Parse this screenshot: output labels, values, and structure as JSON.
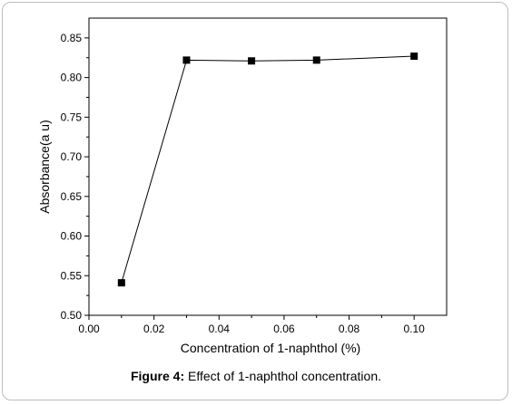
{
  "chart_data": {
    "type": "line",
    "xlabel": "Concentration of 1-naphthol (%)",
    "ylabel": "Absorbance(a u)",
    "xlim": [
      0.0,
      0.11
    ],
    "ylim": [
      0.5,
      0.875
    ],
    "xticks": [
      0.0,
      0.02,
      0.04,
      0.06,
      0.08,
      0.1
    ],
    "xtick_labels": [
      "0.00",
      "0.02",
      "0.04",
      "0.06",
      "0.08",
      "0.10"
    ],
    "yticks": [
      0.5,
      0.55,
      0.6,
      0.65,
      0.7,
      0.75,
      0.8,
      0.85
    ],
    "ytick_labels": [
      "0.50",
      "0.55",
      "0.60",
      "0.65",
      "0.70",
      "0.75",
      "0.80",
      "0.85"
    ],
    "grid": false,
    "series": [
      {
        "x": [
          0.01,
          0.03,
          0.05,
          0.07,
          0.1
        ],
        "y": [
          0.541,
          0.822,
          0.821,
          0.822,
          0.827
        ],
        "marker": "square",
        "color": "#000000"
      }
    ]
  },
  "caption": {
    "label": "Figure 4:",
    "text": "Effect of 1-naphthol concentration."
  }
}
